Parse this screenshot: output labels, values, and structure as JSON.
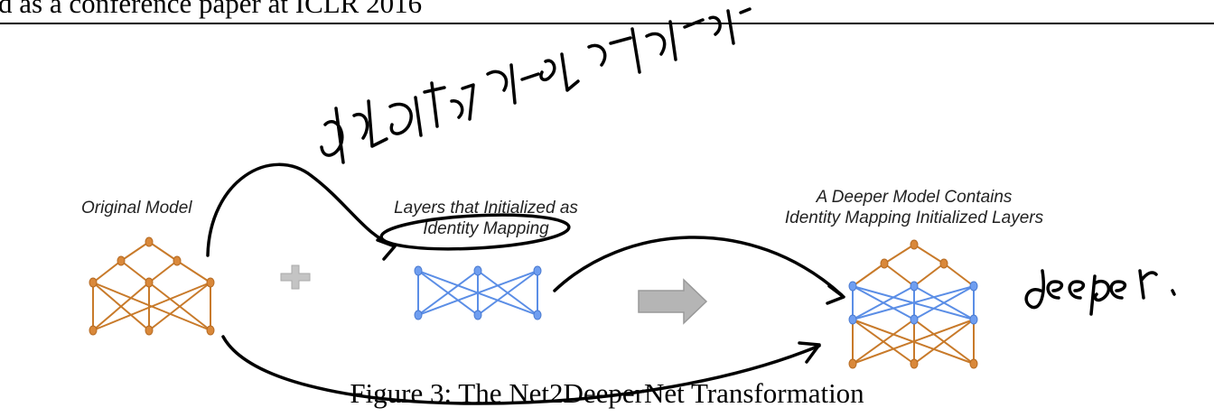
{
  "header": {
    "text": "d as a conference paper at ICLR 2016"
  },
  "figure": {
    "label_original": "Original Model",
    "label_layers_line1": "Layers  that Initialized as",
    "label_layers_line2": "Identity Mapping",
    "label_deeper_line1": "A Deeper Model Contains",
    "label_deeper_line2": "Identity Mapping Initialized Layers",
    "caption": "Figure 3: The Net2DeeperNet Transformation",
    "colors": {
      "original": "#c87a2a",
      "identity": "#5b8ee6",
      "arrow_gray": "#b5b5b5",
      "plus_gray": "#c4c4c4",
      "ink": "#000000"
    }
  },
  "annotations": {
    "handwritten_note_top": "通过恒等映射初始化新增层",
    "handwritten_note_right": "deeper."
  }
}
